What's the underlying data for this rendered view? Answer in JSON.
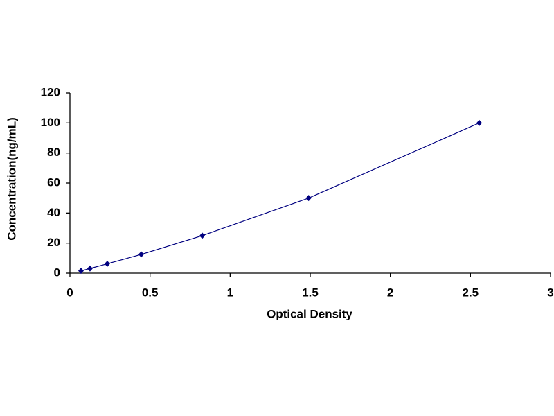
{
  "chart_data": {
    "type": "scatter",
    "x_label": "Optical Density",
    "y_label": "Concentration(ng/mL)",
    "x": [
      0.069,
      0.125,
      0.233,
      0.445,
      0.826,
      1.49,
      2.555
    ],
    "values": [
      1.56,
      3.12,
      6.25,
      12.5,
      25,
      50,
      100
    ],
    "color": "#000080",
    "xlim": [
      0,
      3
    ],
    "xticks": [
      0,
      0.5,
      1,
      1.5,
      2,
      2.5,
      3
    ],
    "ylim": [
      0,
      120
    ],
    "yticks": [
      0,
      20,
      40,
      60,
      80,
      100,
      120
    ],
    "grid": false
  }
}
